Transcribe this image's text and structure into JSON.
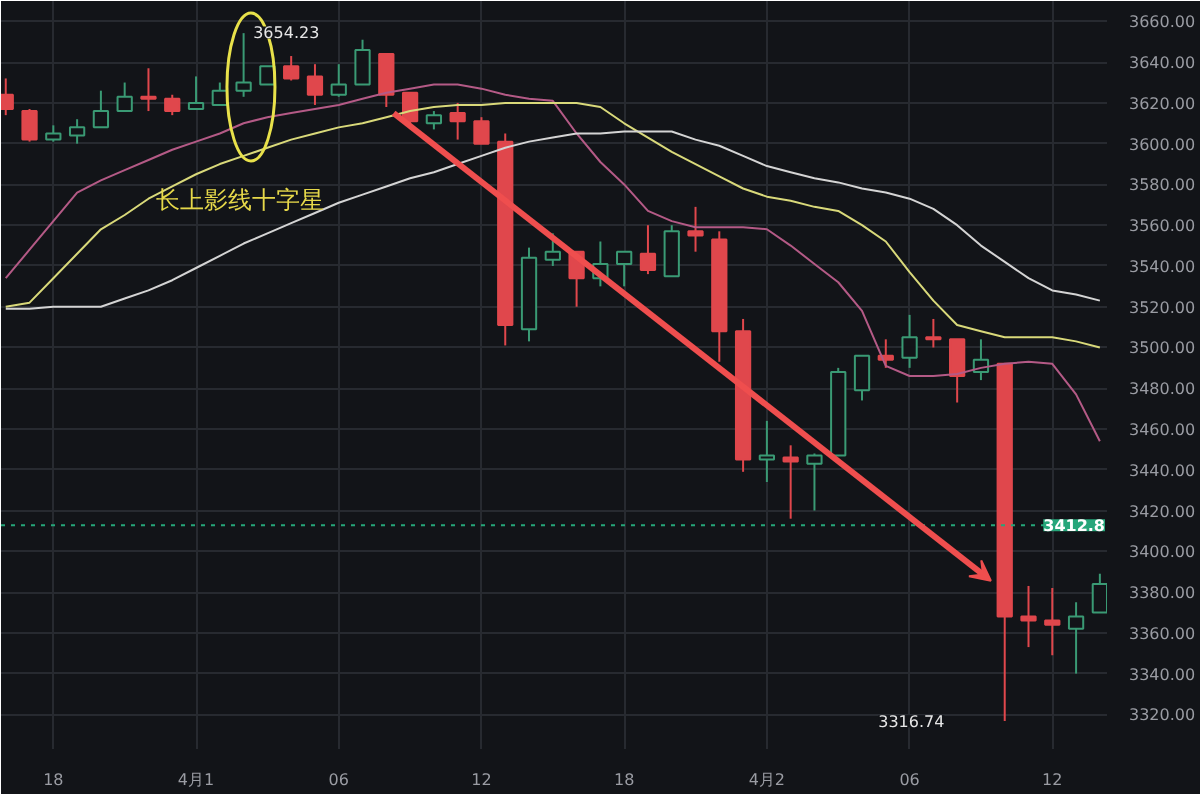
{
  "chart_data": {
    "type": "candlestick",
    "categories": [
      null,
      null,
      "18",
      null,
      null,
      null,
      null,
      null,
      "4月1",
      null,
      null,
      null,
      null,
      null,
      "06",
      null,
      null,
      null,
      null,
      null,
      "12",
      null,
      null,
      null,
      null,
      null,
      "18",
      null,
      null,
      null,
      null,
      null,
      "4月2",
      null,
      null,
      null,
      null,
      null,
      "06",
      null,
      null,
      null,
      null,
      null,
      "12",
      null,
      null
    ],
    "ohlc": [
      [
        3624,
        3632,
        3614,
        3617
      ],
      [
        3616,
        3617,
        3601,
        3602
      ],
      [
        3602,
        3609,
        3601,
        3605
      ],
      [
        3604,
        3612,
        3600,
        3608
      ],
      [
        3608,
        3626,
        3608,
        3616
      ],
      [
        3616,
        3630,
        3616,
        3623
      ],
      [
        3623,
        3637,
        3616,
        3622
      ],
      [
        3622,
        3624,
        3614,
        3616
      ],
      [
        3617,
        3633,
        3617,
        3620
      ],
      [
        3619,
        3630,
        3619,
        3626
      ],
      [
        3626,
        3654.23,
        3623,
        3630
      ],
      [
        3629,
        3638,
        3629,
        3638
      ],
      [
        3638,
        3643,
        3631,
        3632
      ],
      [
        3633,
        3639,
        3619,
        3624
      ],
      [
        3624,
        3639,
        3623,
        3629
      ],
      [
        3629,
        3651,
        3629,
        3646
      ],
      [
        3644,
        3644,
        3618,
        3624
      ],
      [
        3625,
        3625,
        3608,
        3611
      ],
      [
        3610,
        3616,
        3607,
        3614
      ],
      [
        3615,
        3620,
        3602,
        3611
      ],
      [
        3611,
        3613,
        3600,
        3600
      ],
      [
        3601,
        3605,
        3501,
        3511
      ],
      [
        3509,
        3549,
        3503,
        3544
      ],
      [
        3543,
        3556,
        3540,
        3547
      ],
      [
        3547,
        3547,
        3520,
        3534
      ],
      [
        3534,
        3552,
        3530,
        3541
      ],
      [
        3541,
        3547,
        3530,
        3547
      ],
      [
        3546,
        3560,
        3536,
        3538
      ],
      [
        3535,
        3560,
        3535,
        3557
      ],
      [
        3557,
        3569,
        3547,
        3555
      ],
      [
        3553,
        3557,
        3493,
        3508
      ],
      [
        3508,
        3514,
        3439,
        3445
      ],
      [
        3445,
        3464,
        3434,
        3447
      ],
      [
        3446,
        3452,
        3416,
        3444
      ],
      [
        3443,
        3448,
        3420,
        3447
      ],
      [
        3447,
        3490,
        3447,
        3488
      ],
      [
        3479,
        3496,
        3474,
        3496
      ],
      [
        3496,
        3504,
        3490,
        3494
      ],
      [
        3495,
        3516,
        3490,
        3505
      ],
      [
        3505,
        3514,
        3500,
        3504
      ],
      [
        3504,
        3504,
        3473,
        3486
      ],
      [
        3488,
        3504,
        3484,
        3494
      ],
      [
        3492,
        3492,
        3316.74,
        3368
      ],
      [
        3368,
        3383,
        3353,
        3366
      ],
      [
        3366,
        3382,
        3349,
        3364
      ],
      [
        3362,
        3375,
        3340,
        3368
      ],
      [
        3370,
        3389,
        3370,
        3384
      ]
    ],
    "colors": [
      "#e0474c",
      "#e0474c",
      "#3a9a74",
      "#3a9a74",
      "#3a9a74",
      "#3a9a74",
      "#e0474c",
      "#e0474c",
      "#3a9a74",
      "#3a9a74",
      "#3a9a74",
      "#3a9a74",
      "#e0474c",
      "#e0474c",
      "#3a9a74",
      "#3a9a74",
      "#e0474c",
      "#e0474c",
      "#3a9a74",
      "#e0474c",
      "#e0474c",
      "#e0474c",
      "#3a9a74",
      "#3a9a74",
      "#e0474c",
      "#3a9a74",
      "#3a9a74",
      "#e0474c",
      "#3a9a74",
      "#e0474c",
      "#e0474c",
      "#e0474c",
      "#3a9a74",
      "#e0474c",
      "#3a9a74",
      "#3a9a74",
      "#3a9a74",
      "#e0474c",
      "#3a9a74",
      "#e0474c",
      "#e0474c",
      "#3a9a74",
      "#e0474c",
      "#e0474c",
      "#e0474c",
      "#3a9a74",
      "#3a9a74"
    ],
    "series": [
      {
        "type": "line",
        "color": "#b45a86",
        "values": [
          3534,
          3548,
          3562,
          3576,
          3582,
          3587,
          3592,
          3597,
          3601,
          3605,
          3610,
          3613,
          3615,
          3617,
          3619,
          3622,
          3625,
          3627,
          3629,
          3629,
          3627,
          3624,
          3622,
          3621,
          3605,
          3591,
          3580,
          3567,
          3562,
          3559,
          3559,
          3559,
          3558,
          3550,
          3541,
          3532,
          3518,
          3491,
          3486,
          3486,
          3487,
          3490,
          3492,
          3493,
          3492,
          3477,
          3454
        ]
      },
      {
        "type": "line",
        "color": "#d9d97a",
        "values": [
          3520,
          3522,
          3534,
          3546,
          3558,
          3565,
          3573,
          3579,
          3585,
          3590,
          3594,
          3598,
          3602,
          3605,
          3608,
          3610,
          3613,
          3616,
          3618,
          3619,
          3619,
          3620,
          3620,
          3620,
          3620,
          3618,
          3610,
          3603,
          3596,
          3590,
          3584,
          3578,
          3574,
          3572,
          3569,
          3567,
          3560,
          3552,
          3537,
          3523,
          3511,
          3508,
          3505,
          3505,
          3505,
          3503,
          3500
        ]
      },
      {
        "type": "line",
        "color": "#d4d4d4",
        "values": [
          3519,
          3519,
          3520,
          3520,
          3520,
          3524,
          3528,
          3533,
          3539,
          3545,
          3551,
          3556,
          3561,
          3566,
          3571,
          3575,
          3579,
          3583,
          3586,
          3590,
          3594,
          3598,
          3601,
          3603,
          3605,
          3605,
          3606,
          3606,
          3606,
          3602,
          3599,
          3594,
          3589,
          3586,
          3583,
          3581,
          3578,
          3576,
          3573,
          3568,
          3560,
          3550,
          3542,
          3534,
          3528,
          3526,
          3523
        ]
      }
    ],
    "ylim": [
      3303,
      3670
    ],
    "yticks": [
      {
        "value": 3320,
        "label": "3320.00"
      },
      {
        "value": 3340,
        "label": "3340.00"
      },
      {
        "value": 3360,
        "label": "3360.00"
      },
      {
        "value": 3380,
        "label": "3380.00"
      },
      {
        "value": 3400,
        "label": "3400.00"
      },
      {
        "value": 3420,
        "label": "3420.00"
      },
      {
        "value": 3440,
        "label": "3440.00"
      },
      {
        "value": 3460,
        "label": "3460.00"
      },
      {
        "value": 3480,
        "label": "3480.00"
      },
      {
        "value": 3500,
        "label": "3500.00"
      },
      {
        "value": 3520,
        "label": "3520.00"
      },
      {
        "value": 3540,
        "label": "3540.00"
      },
      {
        "value": 3560,
        "label": "3560.00"
      },
      {
        "value": 3580,
        "label": "3580.00"
      },
      {
        "value": 3600,
        "label": "3600.00"
      },
      {
        "value": 3620,
        "label": "3620.00"
      },
      {
        "value": 3640,
        "label": "3640.00"
      },
      {
        "value": 3660,
        "label": "3660.00"
      }
    ],
    "ref_lines": [
      {
        "axis": "y",
        "value": 3412.8,
        "label": "3412.8",
        "color": "#26a67a",
        "line_style": "dotted"
      }
    ],
    "annotations": [
      "3654.23",
      "3316.74",
      "长上影线十字星"
    ],
    "grid": true
  }
}
